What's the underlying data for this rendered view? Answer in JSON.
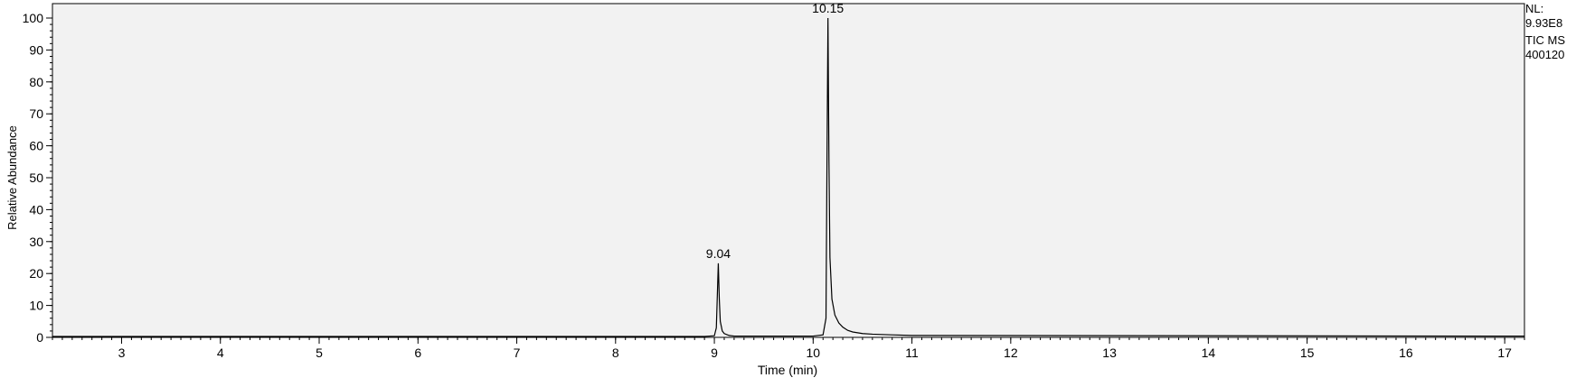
{
  "info": {
    "nl_label": "NL:",
    "nl_value": "9.93E8",
    "scan_filter": "TIC  MS",
    "sample_id": "400120"
  },
  "colors": {
    "plot_background": "#f2f2f2",
    "trace": "#000000",
    "frame": "#000000"
  },
  "chart_data": {
    "type": "line",
    "xlabel": "Time (min)",
    "ylabel": "Relative Abundance",
    "xlim": [
      2.3,
      17.2
    ],
    "ylim": [
      0,
      100
    ],
    "x_ticks": [
      3,
      4,
      5,
      6,
      7,
      8,
      9,
      10,
      11,
      12,
      13,
      14,
      15,
      16,
      17
    ],
    "y_ticks": [
      0,
      10,
      20,
      30,
      40,
      50,
      60,
      70,
      80,
      90,
      100
    ],
    "x_minor_step": 0.1,
    "y_minor_step": 2,
    "grid": false,
    "peak_labels": [
      {
        "x": 9.04,
        "y": 23.2,
        "text": "9.04"
      },
      {
        "x": 10.15,
        "y": 100,
        "text": "10.15"
      }
    ],
    "series": [
      {
        "x": [
          2.3,
          8.9,
          9.0,
          9.02,
          9.03,
          9.04,
          9.05,
          9.06,
          9.08,
          9.1,
          9.15,
          9.2,
          10.0,
          10.1,
          10.13,
          10.14,
          10.15,
          10.16,
          10.17,
          10.19,
          10.22,
          10.26,
          10.3,
          10.35,
          10.4,
          10.5,
          10.6,
          10.8,
          11.0,
          17.2
        ],
        "y": [
          0.3,
          0.3,
          0.5,
          3,
          13,
          23.2,
          12,
          5,
          2,
          1.2,
          0.6,
          0.4,
          0.4,
          0.8,
          6,
          55,
          100,
          55,
          25,
          12,
          7,
          4.5,
          3.2,
          2.2,
          1.7,
          1.2,
          1.0,
          0.8,
          0.6,
          0.4
        ]
      }
    ]
  }
}
